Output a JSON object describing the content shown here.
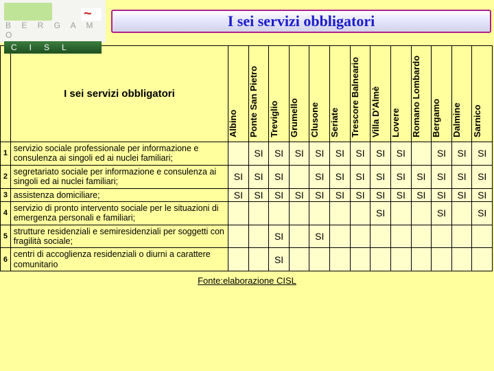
{
  "logo": {
    "bergamo": "B E R G A M O",
    "cisl": "CISL"
  },
  "title": "I sei servizi obbligatori",
  "table_title": "I sei servizi obbligatori",
  "cities": [
    "Albino",
    "Ponte San Pietro",
    "Treviglio",
    "Grumello",
    "Clusone",
    "Seriate",
    "Trescore Balneario",
    "Villa D'Almè",
    "Lovere",
    "Romano Lombardo",
    "Bergamo",
    "Dalmine",
    "Sarnico"
  ],
  "rows": [
    {
      "n": "1",
      "desc": "servizio sociale professionale per informazione e consulenza ai singoli ed ai nuclei familiari;",
      "cells": [
        "",
        "SI",
        "SI",
        "SI",
        "SI",
        "SI",
        "SI",
        "SI",
        "SI",
        "",
        "SI",
        "SI",
        "SI"
      ]
    },
    {
      "n": "2",
      "desc": "segretariato sociale per informazione e consulenza ai singoli ed ai nuclei familiari;",
      "cells": [
        "SI",
        "SI",
        "SI",
        "",
        "SI",
        "SI",
        "SI",
        "SI",
        "SI",
        "SI",
        "SI",
        "SI",
        "SI"
      ]
    },
    {
      "n": "3",
      "desc": "assistenza domiciliare;",
      "cells": [
        "SI",
        "SI",
        "SI",
        "SI",
        "SI",
        "SI",
        "SI",
        "SI",
        "SI",
        "SI",
        "SI",
        "SI",
        "SI"
      ]
    },
    {
      "n": "4",
      "desc": "servizio di pronto intervento sociale per le situazioni di emergenza personali e familiari;",
      "cells": [
        "",
        "",
        "",
        "",
        "",
        "",
        "",
        "SI",
        "",
        "",
        "SI",
        "",
        "SI"
      ]
    },
    {
      "n": "5",
      "desc": "strutture residenziali e semiresidenziali per soggetti con fragilità sociale;",
      "cells": [
        "",
        "",
        "SI",
        "",
        "SI",
        "",
        "",
        "",
        "",
        "",
        "",
        "",
        ""
      ]
    },
    {
      "n": "6",
      "desc": "centri di accoglienza residenziali o diurni a carattere comunitario",
      "cells": [
        "",
        "",
        "SI",
        "",
        "",
        "",
        "",
        "",
        "",
        "",
        "",
        "",
        ""
      ]
    }
  ],
  "footnote": "Fonte:elaborazione CISL",
  "colors": {
    "page_bg": "#ffff9e",
    "title_border": "#b02090",
    "title_text": "#1b1bcc",
    "cell_bg": "#ffffcc"
  }
}
